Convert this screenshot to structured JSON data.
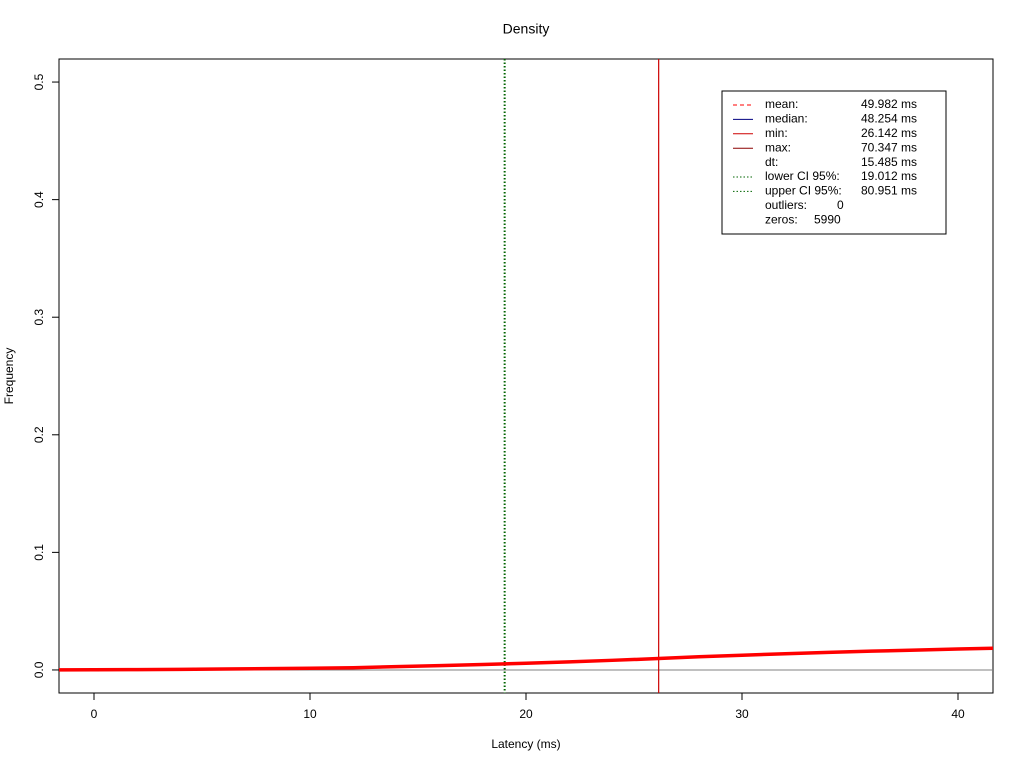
{
  "chart_data": {
    "type": "line",
    "title": "Density",
    "x_label": "Latency (ms)",
    "y_label": "Frequency",
    "xlim": [
      -1.62,
      41.62
    ],
    "ylim": [
      -0.0196,
      0.5196
    ],
    "xticks": [
      0,
      10,
      20,
      30,
      40
    ],
    "yticks": [
      {
        "value": 0,
        "label": "0.0"
      },
      {
        "value": 0.1,
        "label": "0.1"
      },
      {
        "value": 0.2,
        "label": "0.2"
      },
      {
        "value": 0.3,
        "label": "0.3"
      },
      {
        "value": 0.4,
        "label": "0.4"
      },
      {
        "value": 0.5,
        "label": "0.5"
      }
    ],
    "baseline": {
      "value": 0,
      "color": "#808080"
    },
    "series": [
      {
        "color": "#ff0000",
        "x": [
          -1.62,
          0,
          2,
          4,
          6,
          8,
          10,
          12,
          14,
          16,
          18,
          20,
          22,
          24,
          26,
          28,
          30,
          32,
          34,
          36,
          38,
          40,
          41.62
        ],
        "values": [
          0.0001,
          0.0002,
          0.0003,
          0.0005,
          0.0008,
          0.0011,
          0.0014,
          0.0019,
          0.0028,
          0.0037,
          0.0046,
          0.0057,
          0.0069,
          0.0082,
          0.0096,
          0.0112,
          0.0125,
          0.0138,
          0.015,
          0.016,
          0.0169,
          0.0178,
          0.0185
        ]
      }
    ],
    "markers": [
      {
        "name": "mean:",
        "value": 49.982,
        "value_label": "49.982 ms",
        "color": "#ff0000",
        "lty": "dashed"
      },
      {
        "name": "median:",
        "value": 48.254,
        "value_label": "48.254 ms",
        "color": "#000080",
        "lty": "solid"
      },
      {
        "name": "min:",
        "value": 26.142,
        "value_label": "26.142 ms",
        "color": "#cd0000",
        "lty": "solid"
      },
      {
        "name": "max:",
        "value": 70.347,
        "value_label": "70.347 ms",
        "color": "#8b0000",
        "lty": "solid"
      },
      {
        "name": "dt:",
        "value_label": "15.485 ms"
      },
      {
        "name": "lower CI 95%:",
        "value": 19.012,
        "value_label": "19.012 ms",
        "color": "#006400",
        "lty": "dotted"
      },
      {
        "name": "upper CI 95%:",
        "value": 80.951,
        "value_label": "80.951 ms",
        "color": "#006400",
        "lty": "dotted"
      },
      {
        "name": "outliers:",
        "value_label": "0"
      },
      {
        "name": "zeros:",
        "value_label": "5990"
      }
    ]
  }
}
